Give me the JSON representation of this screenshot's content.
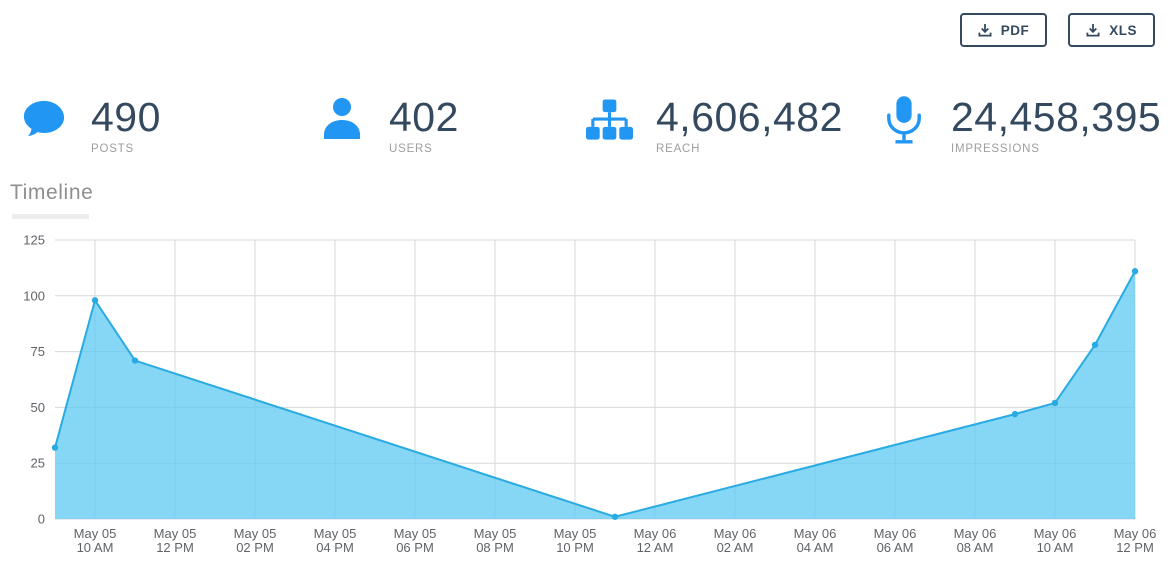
{
  "toolbar": {
    "buttons": [
      {
        "label": "PDF",
        "icon": "download-icon"
      },
      {
        "label": "XLS",
        "icon": "download-icon"
      }
    ]
  },
  "stats": [
    {
      "value": "490",
      "label": "POSTS",
      "icon": "comment-icon"
    },
    {
      "value": "402",
      "label": "USERS",
      "icon": "user-icon"
    },
    {
      "value": "4,606,482",
      "label": "REACH",
      "icon": "sitemap-icon"
    },
    {
      "value": "24,458,395",
      "label": "IMPRESSIONS",
      "icon": "microphone-icon"
    }
  ],
  "section": {
    "title": "Timeline"
  },
  "colors": {
    "accent_blue": "#2196f3",
    "navy": "#34495e",
    "chart_line": "#29abe2",
    "chart_fill": "rgba(88,199,242,0.72)",
    "grid": "#d9d9d9",
    "tick_text": "#5f6368"
  },
  "chart_data": {
    "type": "area",
    "title": "Timeline",
    "series_name": "Posts",
    "points": [
      {
        "label": "May 05 09 AM",
        "hour": 0,
        "value": 32
      },
      {
        "label": "May 05 10 AM",
        "hour": 1,
        "value": 98
      },
      {
        "label": "May 05 11 AM",
        "hour": 2,
        "value": 71
      },
      {
        "label": "May 05 11 PM",
        "hour": 14,
        "value": 1
      },
      {
        "label": "May 06 09 AM",
        "hour": 24,
        "value": 47
      },
      {
        "label": "May 06 10 AM",
        "hour": 25,
        "value": 52
      },
      {
        "label": "May 06 11 AM",
        "hour": 26,
        "value": 78
      },
      {
        "label": "May 06 12 PM",
        "hour": 27,
        "value": 111
      }
    ],
    "x_ticks": [
      {
        "hour": 1,
        "date": "May 05",
        "time": "10 AM"
      },
      {
        "hour": 3,
        "date": "May 05",
        "time": "12 PM"
      },
      {
        "hour": 5,
        "date": "May 05",
        "time": "02 PM"
      },
      {
        "hour": 7,
        "date": "May 05",
        "time": "04 PM"
      },
      {
        "hour": 9,
        "date": "May 05",
        "time": "06 PM"
      },
      {
        "hour": 11,
        "date": "May 05",
        "time": "08 PM"
      },
      {
        "hour": 13,
        "date": "May 05",
        "time": "10 PM"
      },
      {
        "hour": 15,
        "date": "May 06",
        "time": "12 AM"
      },
      {
        "hour": 17,
        "date": "May 06",
        "time": "02 AM"
      },
      {
        "hour": 19,
        "date": "May 06",
        "time": "04 AM"
      },
      {
        "hour": 21,
        "date": "May 06",
        "time": "06 AM"
      },
      {
        "hour": 23,
        "date": "May 06",
        "time": "08 AM"
      },
      {
        "hour": 25,
        "date": "May 06",
        "time": "10 AM"
      },
      {
        "hour": 27,
        "date": "May 06",
        "time": "12 PM"
      }
    ],
    "y_ticks": [
      0,
      25,
      50,
      75,
      100,
      125
    ],
    "ylim": [
      0,
      125
    ],
    "x_range_hours": [
      0,
      27
    ],
    "grid": true,
    "legend": false
  }
}
